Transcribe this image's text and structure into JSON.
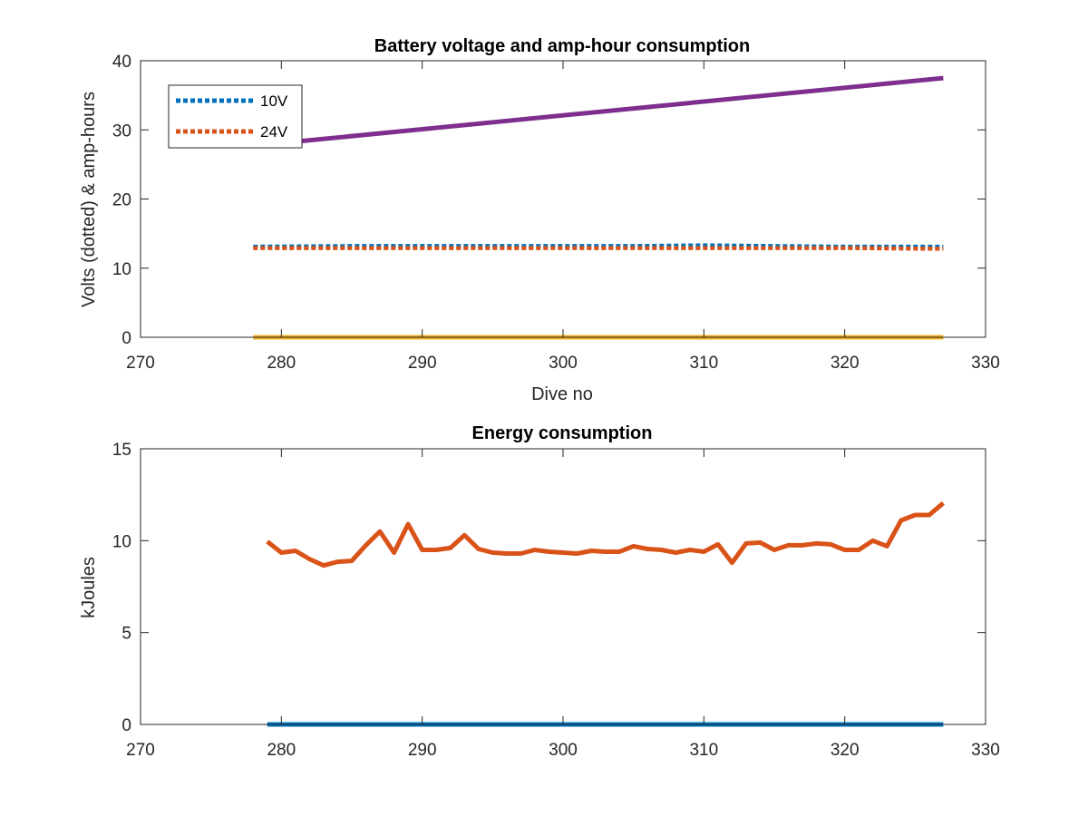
{
  "chart_data": [
    {
      "type": "line",
      "title": "Battery voltage and amp-hour consumption",
      "xlabel": "Dive no",
      "ylabel": "Volts (dotted) & amp-hours",
      "xlim": [
        270,
        330
      ],
      "ylim": [
        0,
        40
      ],
      "xticks": [
        270,
        280,
        290,
        300,
        310,
        320,
        330
      ],
      "yticks": [
        0,
        10,
        20,
        30,
        40
      ],
      "grid": false,
      "legend_position": "top-left",
      "series": [
        {
          "name": "10V",
          "style": "dotted",
          "color": "#0072BD",
          "x": [
            278,
            285,
            290,
            295,
            300,
            305,
            310,
            315,
            320,
            327
          ],
          "values": [
            13.1,
            13.2,
            13.2,
            13.2,
            13.2,
            13.2,
            13.3,
            13.2,
            13.1,
            13.1
          ]
        },
        {
          "name": "24V",
          "style": "dotted",
          "color": "#D95319",
          "x": [
            278,
            285,
            290,
            295,
            300,
            305,
            310,
            315,
            320,
            327
          ],
          "values": [
            12.9,
            12.9,
            12.9,
            12.9,
            12.9,
            12.9,
            12.9,
            12.9,
            12.9,
            12.8
          ]
        },
        {
          "style": "solid",
          "color": "#7E2F8E",
          "x": [
            278,
            327
          ],
          "values": [
            27.7,
            37.5
          ]
        },
        {
          "style": "solid",
          "color": "#EDB120",
          "x": [
            278,
            327
          ],
          "values": [
            0,
            0
          ]
        }
      ]
    },
    {
      "type": "line",
      "title": "Energy consumption",
      "xlabel": "",
      "ylabel": "kJoules",
      "xlim": [
        270,
        330
      ],
      "ylim": [
        0,
        15
      ],
      "xticks": [
        270,
        280,
        290,
        300,
        310,
        320,
        330
      ],
      "yticks": [
        0,
        5,
        10,
        15
      ],
      "grid": false,
      "series": [
        {
          "style": "solid",
          "color": "#0072BD",
          "x": [
            279,
            327
          ],
          "values": [
            0,
            0
          ]
        },
        {
          "style": "solid",
          "color": "#D95319",
          "x": [
            279,
            280,
            281,
            282,
            283,
            284,
            285,
            286,
            287,
            288,
            289,
            290,
            291,
            292,
            293,
            294,
            295,
            296,
            297,
            298,
            299,
            300,
            301,
            302,
            303,
            304,
            305,
            306,
            307,
            308,
            309,
            310,
            311,
            312,
            313,
            314,
            315,
            316,
            317,
            318,
            319,
            320,
            321,
            322,
            323,
            324,
            325,
            326,
            327
          ],
          "values": [
            9.95,
            9.35,
            9.45,
            9.0,
            8.65,
            8.85,
            8.9,
            9.75,
            10.5,
            9.35,
            10.9,
            9.5,
            9.5,
            9.6,
            10.3,
            9.55,
            9.35,
            9.3,
            9.3,
            9.5,
            9.4,
            9.35,
            9.3,
            9.45,
            9.4,
            9.4,
            9.7,
            9.55,
            9.5,
            9.35,
            9.5,
            9.4,
            9.8,
            8.8,
            9.85,
            9.9,
            9.5,
            9.75,
            9.75,
            9.85,
            9.8,
            9.5,
            9.5,
            10.0,
            9.7,
            11.1,
            11.4,
            11.4,
            12.05
          ]
        }
      ]
    }
  ]
}
